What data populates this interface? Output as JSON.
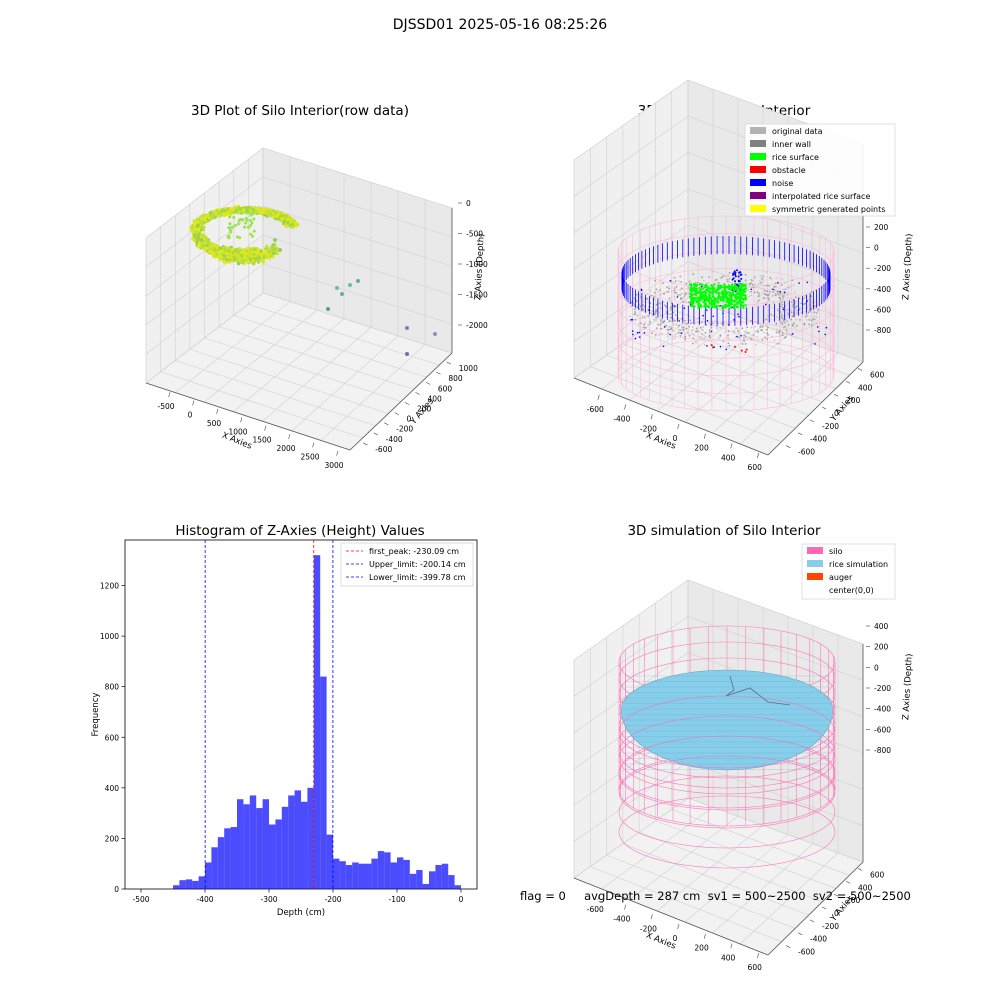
{
  "suptitle": "DJSSD01 2025-05-16 08:25:26",
  "footer": "flag = 0     avgDepth = 287 cm  sv1 = 500~2500  sv2 = 500~2500",
  "panels": {
    "raw": {
      "title": "3D Plot of Silo Interior(row data)",
      "xlabel": "X Axies",
      "ylabel": "Y Axies",
      "zlabel": "Z Axies (Depth)",
      "xticks": [
        "-500",
        "0",
        "500",
        "1000",
        "1500",
        "2000",
        "2500",
        "3000"
      ],
      "yticks": [
        "-600",
        "-400",
        "-200",
        "0",
        "200",
        "400",
        "600",
        "800",
        "1000"
      ],
      "zticks": [
        "0",
        "-500",
        "-1000",
        "-1500",
        "-2000"
      ]
    },
    "classify": {
      "title": "3D classify of Silo Interior",
      "xlabel": "X Axies",
      "ylabel": "Y Axies",
      "zlabel": "Z Axies (Depth)",
      "xticks": [
        "-600",
        "-400",
        "-200",
        "0",
        "200",
        "400",
        "600"
      ],
      "yticks": [
        "-600",
        "-400",
        "-200",
        "0",
        "200",
        "400",
        "600"
      ],
      "zticks": [
        "200",
        "0",
        "-200",
        "-400",
        "-600",
        "-800"
      ],
      "legend": [
        {
          "label": "original data",
          "color": "#b3b3b3"
        },
        {
          "label": "inner wall",
          "color": "#808080"
        },
        {
          "label": "rice surface",
          "color": "#00ff00"
        },
        {
          "label": "obstacle",
          "color": "#ff0000"
        },
        {
          "label": "noise",
          "color": "#0000ff"
        },
        {
          "label": "interpolated rice surface",
          "color": "#800080"
        },
        {
          "label": "symmetric generated points",
          "color": "#ffff00"
        }
      ]
    },
    "simulation": {
      "title": "3D simulation of Silo Interior",
      "xlabel": "X Axies",
      "ylabel": "Y Axies",
      "zlabel": "Z Axies (Depth)",
      "xticks": [
        "-600",
        "-400",
        "-200",
        "0",
        "200",
        "400",
        "600"
      ],
      "yticks": [
        "-600",
        "-400",
        "-200",
        "0",
        "200",
        "400",
        "600"
      ],
      "zticks": [
        "400",
        "200",
        "0",
        "-200",
        "-400",
        "-600",
        "-800"
      ],
      "legend": [
        {
          "label": "silo",
          "color": "#ff69b4"
        },
        {
          "label": "rice simulation",
          "color": "#87ceeb"
        },
        {
          "label": "auger",
          "color": "#ff4500"
        },
        {
          "label": "center(0,0)",
          "color": ""
        }
      ]
    }
  },
  "chart_data": {
    "type": "bar",
    "title": "Histogram of Z-Axies (Height) Values",
    "xlabel": "Depth (cm)",
    "ylabel": "Frequency",
    "xlim": [
      -525,
      25
    ],
    "ylim": [
      0,
      1380
    ],
    "xticks": [
      -500,
      -400,
      -300,
      -200,
      -100,
      0
    ],
    "yticks": [
      0,
      200,
      400,
      600,
      800,
      1000,
      1200
    ],
    "bar_color": "#0000ff",
    "bin_width": 10,
    "bins": [
      {
        "x": -450,
        "v": 15
      },
      {
        "x": -440,
        "v": 35
      },
      {
        "x": -430,
        "v": 38
      },
      {
        "x": -420,
        "v": 32
      },
      {
        "x": -410,
        "v": 50
      },
      {
        "x": -400,
        "v": 105
      },
      {
        "x": -390,
        "v": 165
      },
      {
        "x": -380,
        "v": 205
      },
      {
        "x": -370,
        "v": 240
      },
      {
        "x": -360,
        "v": 245
      },
      {
        "x": -350,
        "v": 355
      },
      {
        "x": -340,
        "v": 335
      },
      {
        "x": -330,
        "v": 370
      },
      {
        "x": -320,
        "v": 320
      },
      {
        "x": -310,
        "v": 355
      },
      {
        "x": -300,
        "v": 255
      },
      {
        "x": -290,
        "v": 275
      },
      {
        "x": -280,
        "v": 325
      },
      {
        "x": -270,
        "v": 370
      },
      {
        "x": -260,
        "v": 390
      },
      {
        "x": -250,
        "v": 345
      },
      {
        "x": -240,
        "v": 400
      },
      {
        "x": -230,
        "v": 1320
      },
      {
        "x": -220,
        "v": 840
      },
      {
        "x": -210,
        "v": 215
      },
      {
        "x": -200,
        "v": 120
      },
      {
        "x": -190,
        "v": 110
      },
      {
        "x": -180,
        "v": 95
      },
      {
        "x": -170,
        "v": 105
      },
      {
        "x": -160,
        "v": 100
      },
      {
        "x": -150,
        "v": 100
      },
      {
        "x": -140,
        "v": 120
      },
      {
        "x": -130,
        "v": 150
      },
      {
        "x": -120,
        "v": 145
      },
      {
        "x": -110,
        "v": 105
      },
      {
        "x": -100,
        "v": 125
      },
      {
        "x": -90,
        "v": 115
      },
      {
        "x": -80,
        "v": 60
      },
      {
        "x": -70,
        "v": 75
      },
      {
        "x": -60,
        "v": 20
      },
      {
        "x": -50,
        "v": 70
      },
      {
        "x": -40,
        "v": 95
      },
      {
        "x": -30,
        "v": 100
      },
      {
        "x": -20,
        "v": 55
      },
      {
        "x": -10,
        "v": 15
      }
    ],
    "vlines": [
      {
        "label": "first_peak: -230.09 cm",
        "x": -230.09,
        "color": "#ff0000"
      },
      {
        "label": "Upper_limit: -200.14 cm",
        "x": -200.14,
        "color": "#0000ff"
      },
      {
        "label": "Lower_limit: -399.78 cm",
        "x": -399.78,
        "color": "#0000ff"
      }
    ],
    "legend_position": "upper right"
  }
}
